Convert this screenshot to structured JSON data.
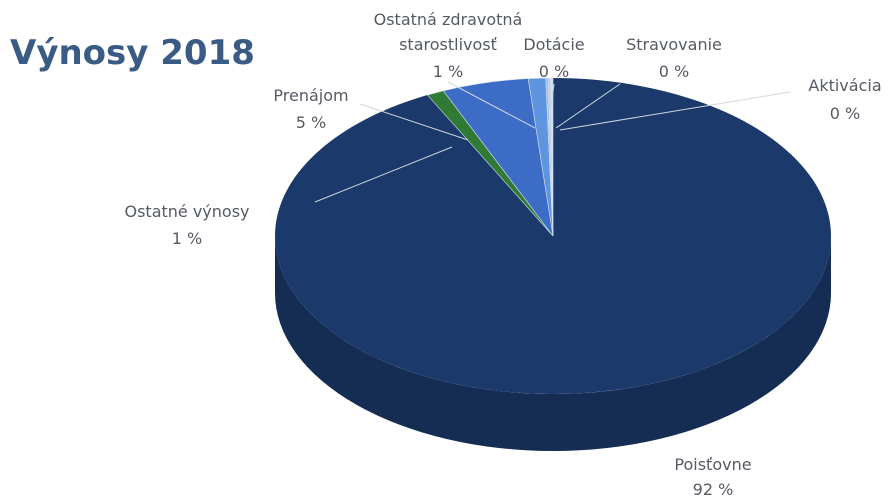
{
  "chart_data": {
    "type": "pie",
    "title": "Výnosy 2018",
    "three_d": true,
    "legend": "none",
    "slices": [
      {
        "name": "Poisťovne",
        "value": 92,
        "label": "92 %",
        "color": "#1b3a6b"
      },
      {
        "name": "Ostatné výnosy",
        "value": 1,
        "label": "1 %",
        "color": "#2f7a35"
      },
      {
        "name": "Prenájom",
        "value": 5,
        "label": "5 %",
        "color": "#3d6cc7"
      },
      {
        "name": "Ostatná zdravotná starostlivosť",
        "value": 1,
        "label": "1 %",
        "color": "#5f95e0"
      },
      {
        "name": "Dotácie",
        "value": 0,
        "label": "0 %",
        "color": "#9dbde8"
      },
      {
        "name": "Stravovanie",
        "value": 0,
        "label": "0 %",
        "color": "#b9cfea"
      },
      {
        "name": "Aktivácia",
        "value": 0,
        "label": "0 %",
        "color": "#d3e1f1"
      }
    ]
  }
}
